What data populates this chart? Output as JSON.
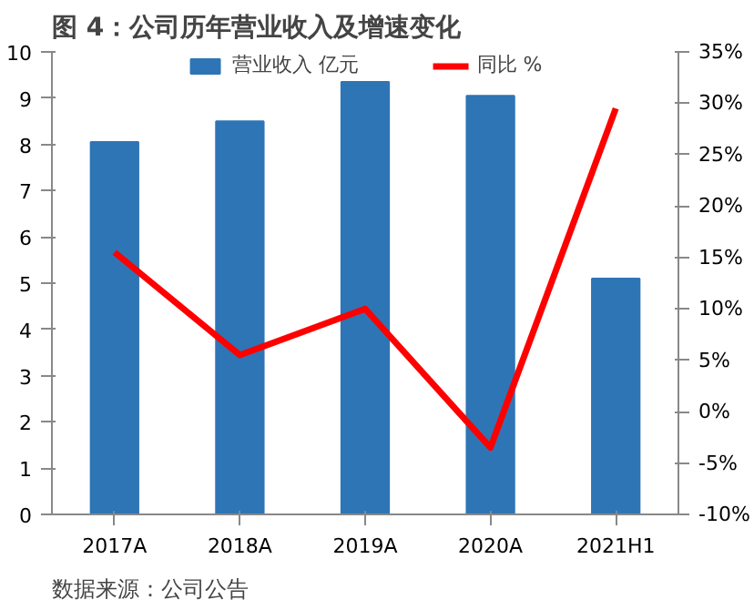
{
  "chart_data": {
    "type": "bar",
    "title": "图 4：公司历年营业收入及增速变化",
    "annotations": [
      "数据来源：公司公告"
    ],
    "categories": [
      "2017A",
      "2018A",
      "2019A",
      "2020A",
      "2021H1"
    ],
    "series": [
      {
        "name": "营业收入 亿元",
        "color": "#2e75b6",
        "values": [
          8.05,
          8.5,
          9.35,
          9.05,
          5.1
        ]
      },
      {
        "name": "同比 %",
        "type": "line",
        "axis": "y2",
        "color": "#ff0000",
        "values": [
          15.5,
          5.5,
          10,
          -3.5,
          29.5
        ]
      }
    ],
    "ylim": [
      0,
      10
    ],
    "yticks": [
      0,
      1,
      2,
      3,
      4,
      5,
      6,
      7,
      8,
      9,
      10
    ],
    "y2lim": [
      -10,
      35
    ],
    "y2ticks": [
      {
        "value": -10,
        "label": "-10%"
      },
      {
        "value": -5,
        "label": "-5%"
      },
      {
        "value": 0,
        "label": "0%"
      },
      {
        "value": 5,
        "label": "5%"
      },
      {
        "value": 10,
        "label": "10%"
      },
      {
        "value": 15,
        "label": "15%"
      },
      {
        "value": 20,
        "label": "20%"
      },
      {
        "value": 25,
        "label": "25%"
      },
      {
        "value": 30,
        "label": "30%"
      },
      {
        "value": 35,
        "label": "35%"
      }
    ],
    "grid": false,
    "legend": "top",
    "marker": "none",
    "line_style": "solid"
  }
}
